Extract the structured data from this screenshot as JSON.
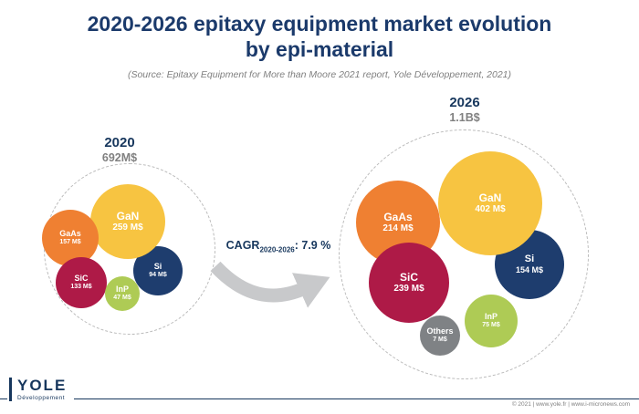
{
  "title_line1": "2020-2026 epitaxy equipment market evolution",
  "title_line2": "by epi-material",
  "subtitle": "(Source: Epitaxy Equipment for More than Moore 2021 report, Yole Développement, 2021)",
  "cagr": {
    "prefix": "CAGR",
    "subscript": "2020-2026",
    "suffix": ": 7.9 %"
  },
  "footer": {
    "copyright": "© 2021  |  www.yole.fr  |  www.i-micronews.com",
    "logo_name": "YOLE",
    "logo_sub": "Développement"
  },
  "colors": {
    "title_navy": "#1B3A6B",
    "arrow_gray": "#C8C9CB"
  },
  "chart_data": {
    "type": "bubble",
    "title": "2020-2026 epitaxy equipment market evolution by epi-material",
    "units": "M$",
    "cagr_2020_2026_percent": 7.9,
    "legend_position": "none",
    "clusters": [
      {
        "id": "2020",
        "label": "2020",
        "total": "692M$",
        "bubbles": [
          {
            "name": "GaAs",
            "value": 157,
            "value_label": "157 M$",
            "color": "#EF8032"
          },
          {
            "name": "GaN",
            "value": 259,
            "value_label": "259 M$",
            "color": "#F7C441"
          },
          {
            "name": "SiC",
            "value": 133,
            "value_label": "133 M$",
            "color": "#AE1A47"
          },
          {
            "name": "InP",
            "value": 47,
            "value_label": "47 M$",
            "color": "#AECB55"
          },
          {
            "name": "Si",
            "value": 94,
            "value_label": "94 M$",
            "color": "#1E3D6E"
          }
        ]
      },
      {
        "id": "2026",
        "label": "2026",
        "total": "1.1B$",
        "bubbles": [
          {
            "name": "GaAs",
            "value": 214,
            "value_label": "214 M$",
            "color": "#EF8032"
          },
          {
            "name": "GaN",
            "value": 402,
            "value_label": "402 M$",
            "color": "#F7C441"
          },
          {
            "name": "SiC",
            "value": 239,
            "value_label": "239 M$",
            "color": "#AE1A47"
          },
          {
            "name": "Si",
            "value": 154,
            "value_label": "154 M$",
            "color": "#1E3D6E"
          },
          {
            "name": "InP",
            "value": 75,
            "value_label": "75 M$",
            "color": "#AECB55"
          },
          {
            "name": "Others",
            "value": 7,
            "value_label": "7 M$",
            "color": "#7F8285"
          }
        ]
      }
    ]
  }
}
